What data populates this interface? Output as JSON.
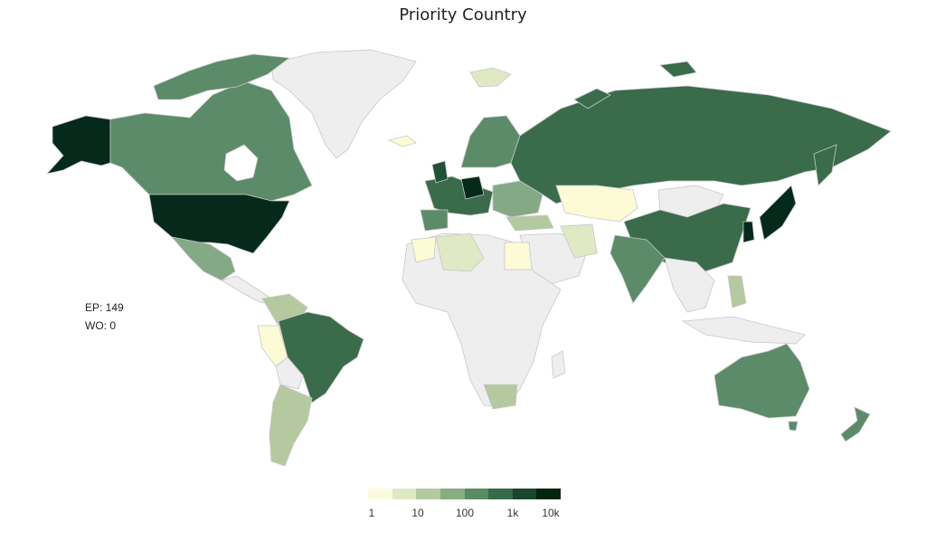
{
  "title": "Priority Country",
  "stats": {
    "ep": "EP: 149",
    "wo": "WO: 0"
  },
  "legend": {
    "colors": [
      "#fbfbdf",
      "#dfe9c4",
      "#b3cc9f",
      "#86ae80",
      "#5a8c64",
      "#356b4b",
      "#1a4630",
      "#04260f"
    ],
    "ticks": [
      "1",
      "10",
      "100",
      "1k",
      "10k"
    ]
  },
  "colors": {
    "none": "#eeeeee",
    "border": "#c8c8c8",
    "very_high": "#05291a",
    "high": "#1f5236",
    "medium_high": "#3a6b4b",
    "medium": "#5b8b68",
    "low_medium": "#84a985",
    "low": "#b4c99f",
    "very_low": "#fcfbd6"
  },
  "regions": [
    {
      "name": "United States",
      "level": "very_high"
    },
    {
      "name": "Alaska",
      "level": "very_high"
    },
    {
      "name": "Canada",
      "level": "medium"
    },
    {
      "name": "Greenland",
      "level": "none"
    },
    {
      "name": "Mexico",
      "level": "low_medium"
    },
    {
      "name": "Brazil",
      "level": "medium_high"
    },
    {
      "name": "Russia",
      "level": "medium_high"
    },
    {
      "name": "China",
      "level": "medium_high"
    },
    {
      "name": "Japan",
      "level": "very_high"
    },
    {
      "name": "India",
      "level": "medium"
    },
    {
      "name": "Australia",
      "level": "medium"
    },
    {
      "name": "Germany",
      "level": "very_high"
    },
    {
      "name": "Kazakhstan",
      "level": "very_low"
    },
    {
      "name": "South Africa",
      "level": "low"
    },
    {
      "name": "Argentina",
      "level": "low"
    },
    {
      "name": "New Zealand",
      "level": "medium"
    }
  ]
}
